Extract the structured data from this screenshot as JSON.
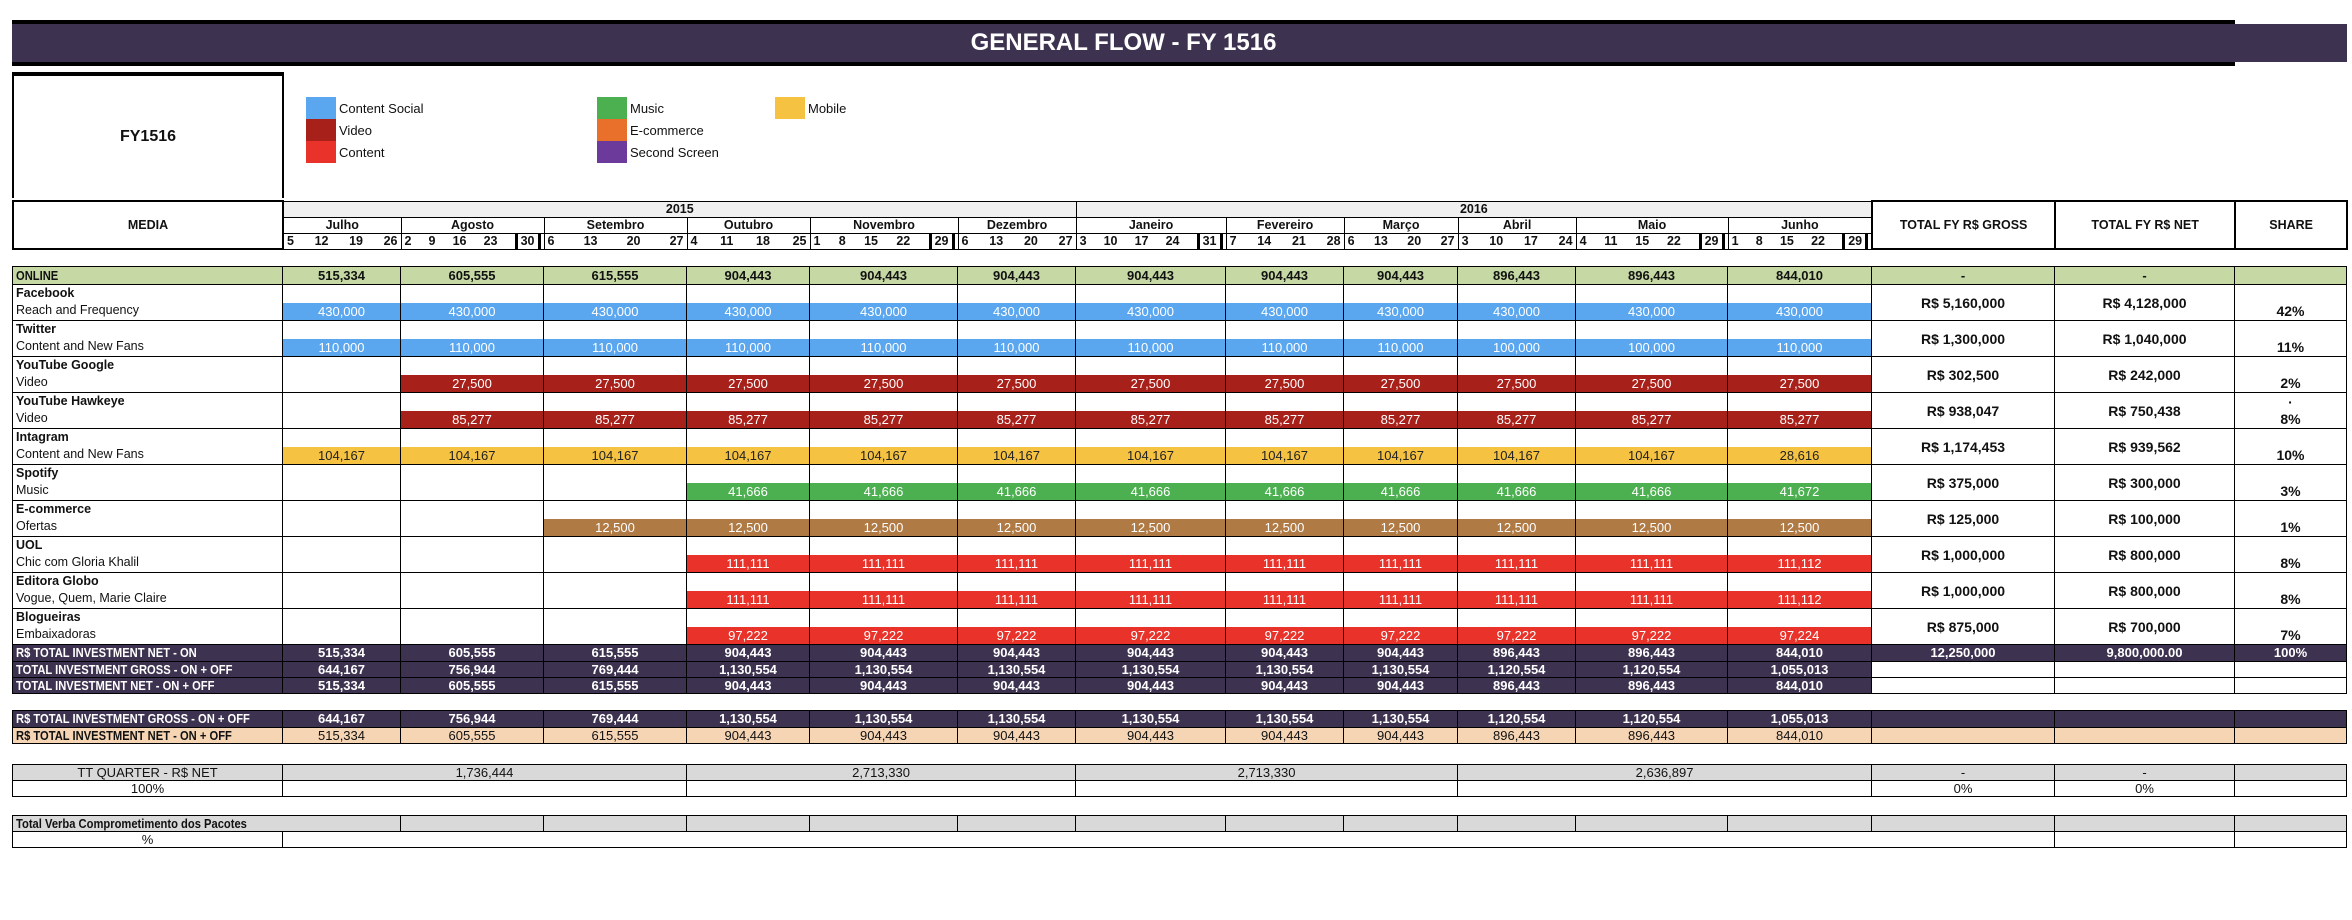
{
  "title": "GENERAL FLOW - FY 1516",
  "fy_label": "FY1516",
  "legend": [
    {
      "label": "Content Social",
      "color": "#5aa7f0"
    },
    {
      "label": "Video",
      "color": "#a8201a"
    },
    {
      "label": "Content",
      "color": "#e8322a"
    },
    {
      "label": "Music",
      "color": "#4caf50"
    },
    {
      "label": "E-commerce",
      "color": "#e8702a"
    },
    {
      "label": "Second Screen",
      "color": "#6b3a9a"
    },
    {
      "label": "Mobile",
      "color": "#f5c242"
    }
  ],
  "header": {
    "media": "MEDIA",
    "years": [
      "2015",
      "2016"
    ],
    "total_gross": "TOTAL FY R$ GROSS",
    "total_net": "TOTAL FY R$ NET",
    "share": "SHARE",
    "months": [
      {
        "name": "Julho",
        "days": [
          "5",
          "12",
          "19",
          "26"
        ]
      },
      {
        "name": "Agosto",
        "days": [
          "2",
          "9",
          "16",
          "23",
          "30"
        ],
        "boxed": "30"
      },
      {
        "name": "Setembro",
        "days": [
          "6",
          "13",
          "20",
          "27"
        ]
      },
      {
        "name": "Outubro",
        "days": [
          "4",
          "11",
          "18",
          "25"
        ]
      },
      {
        "name": "Novembro",
        "days": [
          "1",
          "8",
          "15",
          "22",
          "29"
        ],
        "boxed": "29"
      },
      {
        "name": "Dezembro",
        "days": [
          "6",
          "13",
          "20",
          "27"
        ]
      },
      {
        "name": "Janeiro",
        "days": [
          "3",
          "10",
          "17",
          "24",
          "31"
        ],
        "boxed": "31"
      },
      {
        "name": "Fevereiro",
        "days": [
          "7",
          "14",
          "21",
          "28"
        ]
      },
      {
        "name": "Março",
        "days": [
          "6",
          "13",
          "20",
          "27"
        ]
      },
      {
        "name": "Abril",
        "days": [
          "3",
          "10",
          "17",
          "24"
        ]
      },
      {
        "name": "Maio",
        "days": [
          "4",
          "11",
          "15",
          "22",
          "29"
        ],
        "boxed": "29"
      },
      {
        "name": "Junho",
        "days": [
          "1",
          "8",
          "15",
          "22",
          "29"
        ],
        "boxed": "29"
      }
    ]
  },
  "online": {
    "label": "ONLINE",
    "values": [
      "515,334",
      "605,555",
      "615,555",
      "904,443",
      "904,443",
      "904,443",
      "904,443",
      "904,443",
      "904,443",
      "896,443",
      "896,443",
      "844,010"
    ],
    "gross": "-",
    "net": "-"
  },
  "rows": [
    {
      "name": "Facebook",
      "sub": "Reach and Frequency",
      "color": "#5aa7f0",
      "values": [
        "430,000",
        "430,000",
        "430,000",
        "430,000",
        "430,000",
        "430,000",
        "430,000",
        "430,000",
        "430,000",
        "430,000",
        "430,000",
        "430,000"
      ],
      "gross": "R$ 5,160,000",
      "net": "R$ 4,128,000",
      "share": "42%"
    },
    {
      "name": "Twitter",
      "sub": "Content and New Fans",
      "color": "#5aa7f0",
      "values": [
        "110,000",
        "110,000",
        "110,000",
        "110,000",
        "110,000",
        "110,000",
        "110,000",
        "110,000",
        "110,000",
        "100,000",
        "100,000",
        "110,000"
      ],
      "gross": "R$ 1,300,000",
      "net": "R$ 1,040,000",
      "share": "11%"
    },
    {
      "name": "YouTube Google",
      "sub": "Video",
      "color": "#a8201a",
      "values": [
        null,
        "27,500",
        "27,500",
        "27,500",
        "27,500",
        "27,500",
        "27,500",
        "27,500",
        "27,500",
        "27,500",
        "27,500",
        "27,500"
      ],
      "gross": "R$ 302,500",
      "net": "R$ 242,000",
      "share": "2%"
    },
    {
      "name": "YouTube Hawkeye",
      "sub": "Video",
      "color": "#a8201a",
      "values": [
        null,
        "85,277",
        "85,277",
        "85,277",
        "85,277",
        "85,277",
        "85,277",
        "85,277",
        "85,277",
        "85,277",
        "85,277",
        "85,277"
      ],
      "gross": "R$ 938,047",
      "net": "R$ 750,438",
      "share_mark": "·",
      "share": "8%"
    },
    {
      "name": "Intagram",
      "sub": "Content and New Fans",
      "color": "#f5c242",
      "text_color": "#222",
      "values": [
        "104,167",
        "104,167",
        "104,167",
        "104,167",
        "104,167",
        "104,167",
        "104,167",
        "104,167",
        "104,167",
        "104,167",
        "104,167",
        "28,616"
      ],
      "gross": "R$ 1,174,453",
      "net": "R$ 939,562",
      "share": "10%"
    },
    {
      "name": "Spotify",
      "sub": "Music",
      "color": "#4caf50",
      "values": [
        null,
        null,
        null,
        "41,666",
        "41,666",
        "41,666",
        "41,666",
        "41,666",
        "41,666",
        "41,666",
        "41,666",
        "41,672"
      ],
      "gross": "R$ 375,000",
      "net": "R$ 300,000",
      "share": "3%"
    },
    {
      "name": "E-commerce",
      "sub": "Ofertas",
      "color": "#b07a45",
      "values": [
        null,
        null,
        "12,500",
        "12,500",
        "12,500",
        "12,500",
        "12,500",
        "12,500",
        "12,500",
        "12,500",
        "12,500",
        "12,500"
      ],
      "gross": "R$ 125,000",
      "net": "R$ 100,000",
      "share": "1%"
    },
    {
      "name": "UOL",
      "sub": "Chic com Gloria Khalil",
      "color": "#e8322a",
      "values": [
        null,
        null,
        null,
        "111,111",
        "111,111",
        "111,111",
        "111,111",
        "111,111",
        "111,111",
        "111,111",
        "111,111",
        "111,112"
      ],
      "gross": "R$ 1,000,000",
      "net": "R$ 800,000",
      "share": "8%"
    },
    {
      "name": "Editora Globo",
      "sub": "Vogue, Quem, Marie Claire",
      "color": "#e8322a",
      "values": [
        null,
        null,
        null,
        "111,111",
        "111,111",
        "111,111",
        "111,111",
        "111,111",
        "111,111",
        "111,111",
        "111,111",
        "111,112"
      ],
      "gross": "R$ 1,000,000",
      "net": "R$ 800,000",
      "share": "8%"
    },
    {
      "name": "Blogueiras",
      "sub": "Embaixadoras",
      "color": "#e8322a",
      "values": [
        null,
        null,
        null,
        "97,222",
        "97,222",
        "97,222",
        "97,222",
        "97,222",
        "97,222",
        "97,222",
        "97,222",
        "97,224"
      ],
      "gross": "R$ 875,000",
      "net": "R$ 700,000",
      "share": "7%"
    }
  ],
  "total_net_on": {
    "label": "R$  TOTAL INVESTMENT NET - ON",
    "values": [
      "515,334",
      "605,555",
      "615,555",
      "904,443",
      "904,443",
      "904,443",
      "904,443",
      "904,443",
      "904,443",
      "896,443",
      "896,443",
      "844,010"
    ],
    "gross": "12,250,000",
    "net": "9,800,000.00",
    "share": "100%"
  },
  "total_gross_onoff": {
    "label": "TOTAL INVESTMENT GROSS - ON + OFF",
    "values": [
      "644,167",
      "756,944",
      "769,444",
      "1,130,554",
      "1,130,554",
      "1,130,554",
      "1,130,554",
      "1,130,554",
      "1,130,554",
      "1,120,554",
      "1,120,554",
      "1,055,013"
    ]
  },
  "total_net_onoff": {
    "label": "TOTAL INVESTMENT NET - ON + OFF",
    "values": [
      "515,334",
      "605,555",
      "615,555",
      "904,443",
      "904,443",
      "904,443",
      "904,443",
      "904,443",
      "904,443",
      "896,443",
      "896,443",
      "844,010"
    ]
  },
  "rs_gross_onoff": {
    "label": "R$ TOTAL INVESTMENT GROSS - ON + OFF",
    "values": [
      "644,167",
      "756,944",
      "769,444",
      "1,130,554",
      "1,130,554",
      "1,130,554",
      "1,130,554",
      "1,130,554",
      "1,130,554",
      "1,120,554",
      "1,120,554",
      "1,055,013"
    ]
  },
  "rs_net_onoff": {
    "label": "R$ TOTAL INVESTMENT NET - ON + OFF",
    "values": [
      "515,334",
      "605,555",
      "615,555",
      "904,443",
      "904,443",
      "904,443",
      "904,443",
      "904,443",
      "904,443",
      "896,443",
      "896,443",
      "844,010"
    ]
  },
  "quarter": {
    "label": "TT QUARTER - R$ NET",
    "values": [
      "1,736,444",
      "2,713,330",
      "2,713,330",
      "2,636,897"
    ],
    "gross": "-",
    "net": "-",
    "pct_label": "100%",
    "gross_pct": "0%",
    "net_pct": "0%"
  },
  "verba": {
    "label": "Total Verba Comprometimento dos Pacotes",
    "pct_label": "%"
  }
}
